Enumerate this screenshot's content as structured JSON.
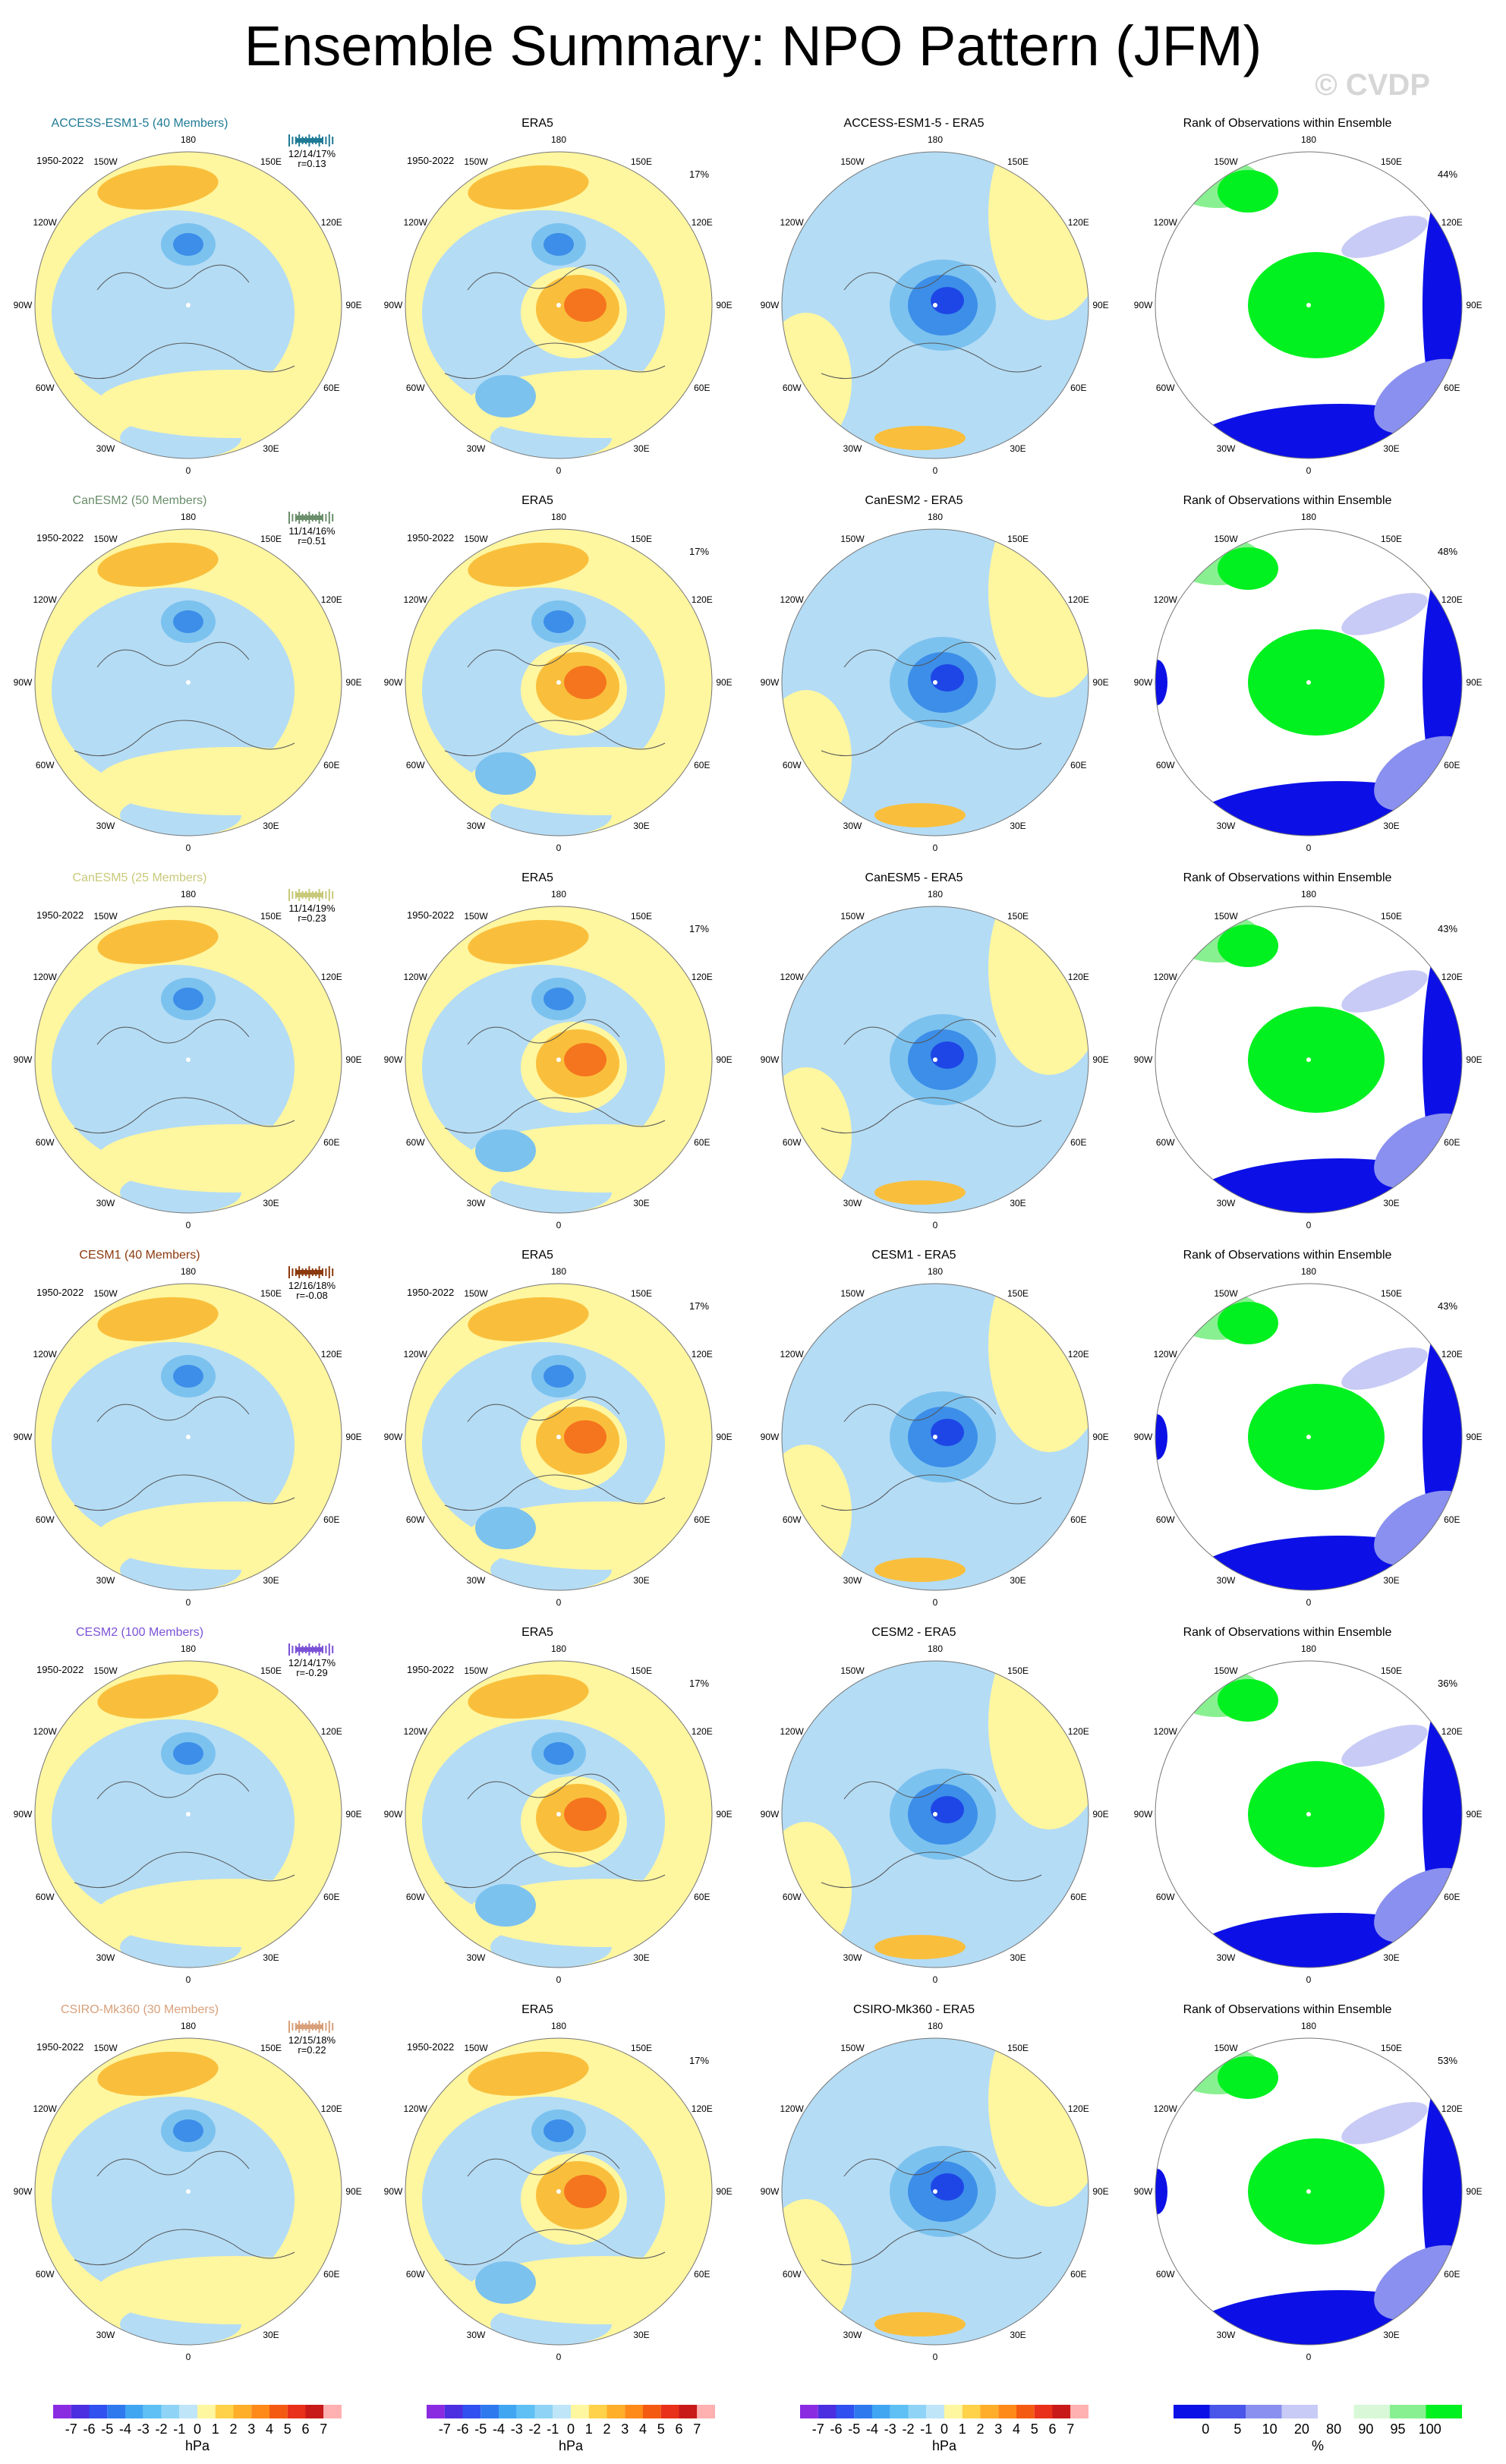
{
  "title": "Ensemble Summary: NPO Pattern (JFM)",
  "watermark": "© CVDP",
  "period": "1950-2022",
  "lon_labels": [
    "180",
    "150E",
    "120E",
    "90E",
    "60E",
    "30E",
    "0",
    "30W",
    "60W",
    "90W",
    "120W",
    "150W"
  ],
  "obs_title": "ERA5",
  "obs_pct": "17%",
  "rank_title": "Rank of Observations within Ensemble",
  "colors": {
    "ocean": "#fff6a0",
    "light_blue": "#b4dcf5",
    "mid_blue": "#7cc2ef",
    "blue": "#3c8ee8",
    "dark_blue": "#1e46e6",
    "orange": "#f9bf3c",
    "red_orange": "#f5751e",
    "green": "#00f020",
    "rank_blue": "#0c10e6"
  },
  "rows": [
    {
      "model": "ACCESS-ESM1-5 (40 Members)",
      "color": "#1f7a95",
      "stats": "12/14/17%",
      "r": "r=0.13",
      "diff_title": "ACCESS-ESM1-5 - ERA5",
      "rank_pct": "44%"
    },
    {
      "model": "CanESM2 (50 Members)",
      "color": "#6b8e6b",
      "stats": "11/14/16%",
      "r": "r=0.51",
      "diff_title": "CanESM2 - ERA5",
      "rank_pct": "48%"
    },
    {
      "model": "CanESM5 (25 Members)",
      "color": "#c8c97a",
      "stats": "11/14/19%",
      "r": "r=0.23",
      "diff_title": "CanESM5 - ERA5",
      "rank_pct": "43%"
    },
    {
      "model": "CESM1 (40 Members)",
      "color": "#8b3a0e",
      "stats": "12/16/18%",
      "r": "r=-0.08",
      "diff_title": "CESM1 - ERA5",
      "rank_pct": "43%"
    },
    {
      "model": "CESM2 (100 Members)",
      "color": "#7b52d6",
      "stats": "12/14/17%",
      "r": "r=-0.29",
      "diff_title": "CESM2 - ERA5",
      "rank_pct": "36%"
    },
    {
      "model": "CSIRO-Mk360 (30 Members)",
      "color": "#d8a07a",
      "stats": "12/15/18%",
      "r": "r=0.22",
      "diff_title": "CSIRO-Mk360 - ERA5",
      "rank_pct": "53%"
    }
  ],
  "colorbar_hpa": {
    "labels": [
      "-7",
      "-6",
      "-5",
      "-4",
      "-3",
      "-2",
      "-1",
      "0",
      "1",
      "2",
      "3",
      "4",
      "5",
      "6",
      "7"
    ],
    "unit": "hPa",
    "colors": [
      "#8a2be2",
      "#4b2fe0",
      "#3050f0",
      "#2f79ef",
      "#41a6f2",
      "#5fc0f5",
      "#8fd4f6",
      "#bfe5f8",
      "#fff6a0",
      "#ffd24a",
      "#ffae2a",
      "#ff8a1a",
      "#f55a12",
      "#e8301a",
      "#c81a18",
      "#ffb0b0"
    ]
  },
  "colorbar_rank": {
    "labels": [
      "0",
      "5",
      "10",
      "20",
      "80",
      "90",
      "95",
      "100"
    ],
    "unit": "%",
    "colors": [
      "#0a10e6",
      "#4a55ea",
      "#8a90ef",
      "#c8cbf5",
      "#ffffff",
      "#d8f8d8",
      "#88f090",
      "#00f020"
    ]
  }
}
